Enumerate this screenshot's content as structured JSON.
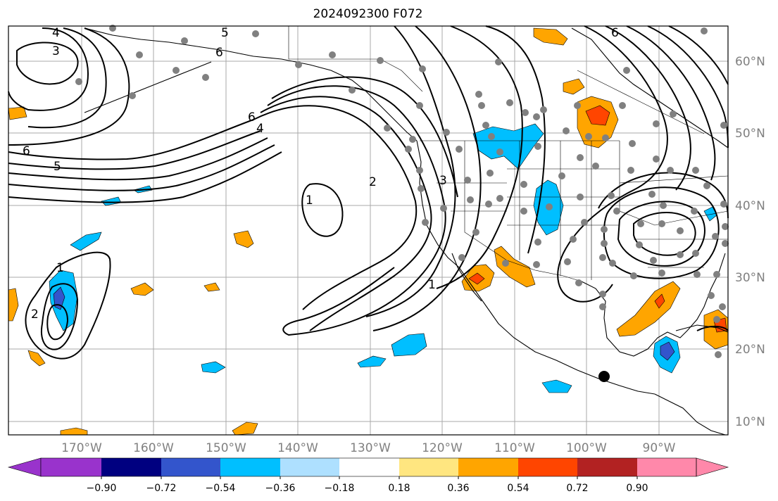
{
  "title": "2024092300 F072",
  "longitude_labels": [
    "170°W",
    "160°W",
    "150°W",
    "140°W",
    "130°W",
    "120°W",
    "110°W",
    "100°W",
    "90°W"
  ],
  "latitude_labels": [
    "60°N",
    "50°N",
    "40°N",
    "30°N",
    "20°N",
    "10°N"
  ],
  "colorbar": {
    "ticks": [
      "−0.90",
      "−0.72",
      "−0.54",
      "−0.36",
      "−0.18",
      "0.18",
      "0.36",
      "0.54",
      "0.72",
      "0.90"
    ],
    "colors": [
      "#9933cc",
      "#000080",
      "#3355cc",
      "#00bfff",
      "#aee0ff",
      "#ffffff",
      "#ffe680",
      "#ffa500",
      "#ff4500",
      "#b22222",
      "#ff88aa"
    ]
  },
  "contour_labels": [
    "4",
    "3",
    "6",
    "5",
    "6",
    "4",
    "6",
    "5",
    "1",
    "2",
    "3",
    "1",
    "1",
    "2",
    "6"
  ],
  "colors": {
    "grid": "#a9a9a9",
    "station_dot": "#808080",
    "marker": "#000000"
  }
}
